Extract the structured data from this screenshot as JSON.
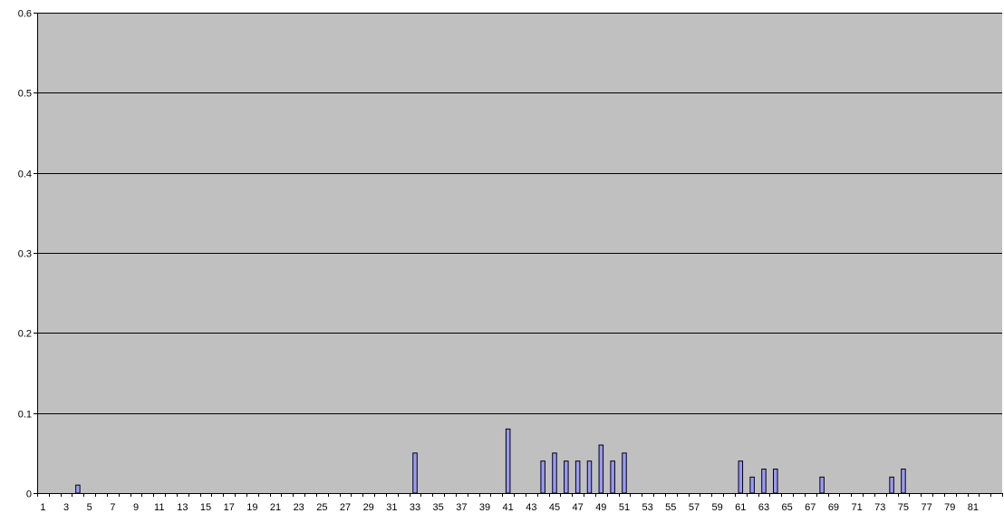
{
  "chart_data": {
    "type": "bar",
    "title": "",
    "xlabel": "",
    "ylabel": "",
    "ylim": [
      0,
      0.6
    ],
    "yticks": [
      "0",
      "0.1",
      "0.2",
      "0.3",
      "0.4",
      "0.5",
      "0.6"
    ],
    "ytick_values": [
      0,
      0.1,
      0.2,
      0.3,
      0.4,
      0.5,
      0.6
    ],
    "categories": [
      1,
      2,
      3,
      4,
      5,
      6,
      7,
      8,
      9,
      10,
      11,
      12,
      13,
      14,
      15,
      16,
      17,
      18,
      19,
      20,
      21,
      22,
      23,
      24,
      25,
      26,
      27,
      28,
      29,
      30,
      31,
      32,
      33,
      34,
      35,
      36,
      37,
      38,
      39,
      40,
      41,
      42,
      43,
      44,
      45,
      46,
      47,
      48,
      49,
      50,
      51,
      52,
      53,
      54,
      55,
      56,
      57,
      58,
      59,
      60,
      61,
      62,
      63,
      64,
      65,
      66,
      67,
      68,
      69,
      70,
      71,
      72,
      73,
      74,
      75,
      76,
      77,
      78,
      79,
      80,
      81,
      82,
      83
    ],
    "xtick_labels": [
      "1",
      "3",
      "5",
      "7",
      "9",
      "11",
      "13",
      "15",
      "17",
      "19",
      "21",
      "23",
      "25",
      "27",
      "29",
      "31",
      "33",
      "35",
      "37",
      "39",
      "41",
      "43",
      "45",
      "47",
      "49",
      "51",
      "53",
      "55",
      "57",
      "59",
      "61",
      "63",
      "65",
      "67",
      "69",
      "71",
      "73",
      "75",
      "77",
      "79",
      "81"
    ],
    "values": [
      0,
      0,
      0,
      0.01,
      0,
      0,
      0,
      0,
      0,
      0,
      0,
      0,
      0,
      0,
      0,
      0,
      0,
      0,
      0,
      0,
      0,
      0,
      0,
      0,
      0,
      0,
      0,
      0,
      0,
      0,
      0,
      0,
      0.05,
      0,
      0,
      0,
      0,
      0,
      0,
      0,
      0.08,
      0,
      0,
      0.04,
      0.05,
      0.04,
      0.04,
      0.04,
      0.06,
      0.04,
      0.05,
      0,
      0,
      0,
      0,
      0,
      0,
      0,
      0,
      0,
      0.04,
      0.02,
      0.03,
      0.03,
      0,
      0,
      0,
      0.02,
      0,
      0,
      0,
      0,
      0,
      0.02,
      0.03,
      0,
      0,
      0,
      0,
      0,
      0,
      0,
      0
    ],
    "grid": true,
    "legend": "none",
    "colors": {
      "plot_background": "#c0c0c0",
      "bar_fill": "#9999ff",
      "bar_stroke": "#000000",
      "gridline": "#000000",
      "axis": "#000000"
    }
  }
}
